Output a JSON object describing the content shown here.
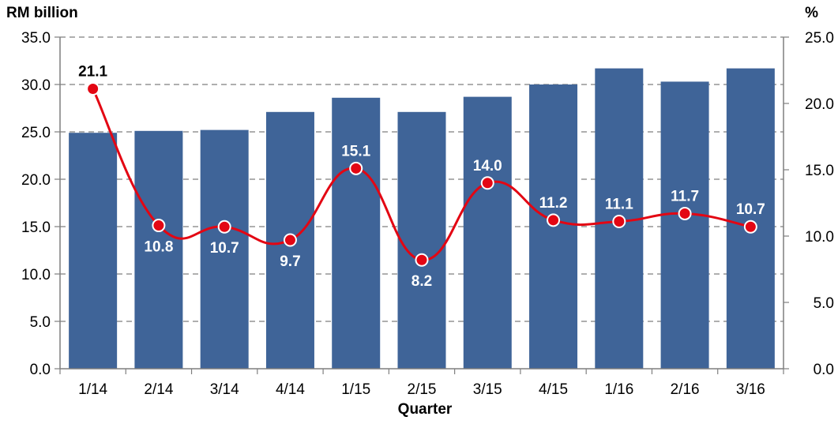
{
  "chart_data": {
    "type": "bar",
    "categories": [
      "1/14",
      "2/14",
      "3/14",
      "4/14",
      "1/15",
      "2/15",
      "3/15",
      "4/15",
      "1/16",
      "2/16",
      "3/16"
    ],
    "xlabel": "Quarter",
    "ylabel": "RM billion",
    "y2label": "%",
    "ylim": [
      0,
      35
    ],
    "y2lim": [
      0,
      25
    ],
    "yticks": [
      "0.0",
      "5.0",
      "10.0",
      "15.0",
      "20.0",
      "25.0",
      "30.0",
      "35.0"
    ],
    "y2ticks": [
      "0.0",
      "5.0",
      "10.0",
      "15.0",
      "20.0",
      "25.0"
    ],
    "grid": "horizontal dashed",
    "series": [
      {
        "type": "bar",
        "axis": "left",
        "color": "#3F6498",
        "values": [
          24.9,
          25.1,
          25.2,
          27.1,
          28.6,
          27.1,
          28.7,
          30.0,
          31.7,
          30.3,
          31.7
        ]
      },
      {
        "type": "line",
        "axis": "right",
        "color": "#E30613",
        "smooth": true,
        "values": [
          21.1,
          10.8,
          10.7,
          9.7,
          15.1,
          8.2,
          14.0,
          11.2,
          11.1,
          11.7,
          10.7
        ],
        "labels": [
          "21.1",
          "10.8",
          "10.7",
          "9.7",
          "15.1",
          "8.2",
          "14.0",
          "11.2",
          "11.1",
          "11.7",
          "10.7"
        ]
      }
    ]
  }
}
